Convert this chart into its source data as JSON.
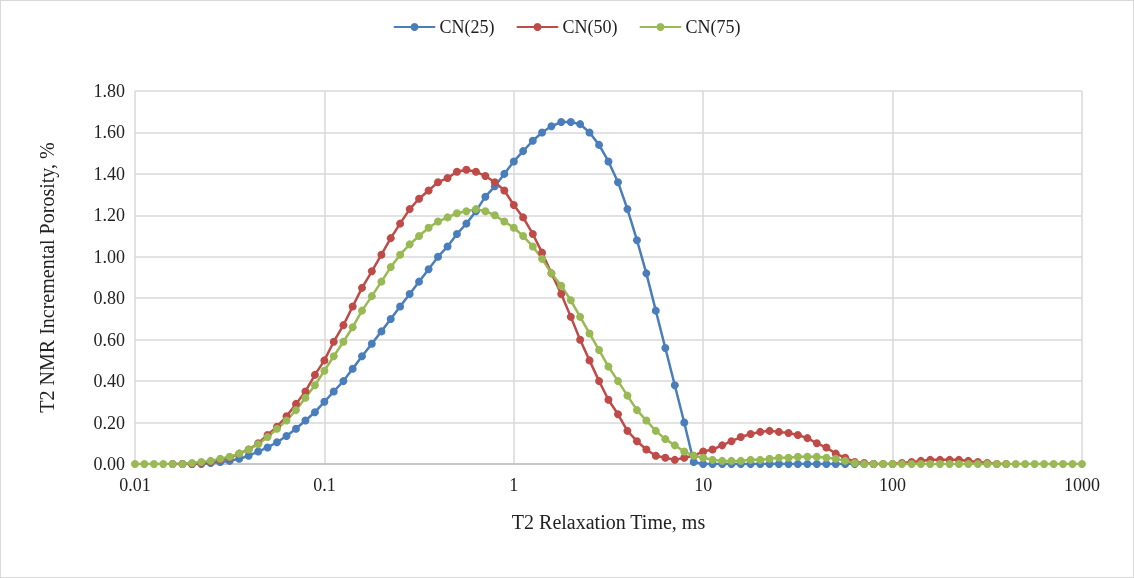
{
  "chart_data": {
    "type": "line",
    "xlabel": "T2 Relaxation Time, ms",
    "ylabel": "T2 NMR Incremental Porosity, %",
    "log": "x",
    "grid": true,
    "legend": "top",
    "marker": "circle",
    "line_style": "solid",
    "x": [
      0.01,
      0.0112,
      0.0126,
      0.0141,
      0.0158,
      0.0178,
      0.02,
      0.0224,
      0.0251,
      0.0282,
      0.0316,
      0.0355,
      0.0398,
      0.0447,
      0.0501,
      0.0562,
      0.0631,
      0.0708,
      0.0794,
      0.0891,
      0.1,
      0.112,
      0.126,
      0.141,
      0.158,
      0.178,
      0.2,
      0.224,
      0.251,
      0.282,
      0.316,
      0.355,
      0.398,
      0.447,
      0.501,
      0.562,
      0.631,
      0.708,
      0.794,
      0.891,
      1,
      1.12,
      1.26,
      1.41,
      1.58,
      1.78,
      2,
      2.24,
      2.51,
      2.82,
      3.16,
      3.55,
      3.98,
      4.47,
      5.01,
      5.62,
      6.31,
      7.08,
      7.94,
      8.91,
      10,
      11.2,
      12.6,
      14.1,
      15.8,
      17.8,
      20,
      22.4,
      25.1,
      28.2,
      31.6,
      35.5,
      39.8,
      44.7,
      50.1,
      56.2,
      63.1,
      70.8,
      79.4,
      89.1,
      100,
      112,
      126,
      141,
      158,
      178,
      200,
      224,
      251,
      282,
      316,
      355,
      398,
      447,
      501,
      562,
      631,
      708,
      794,
      891,
      1000
    ],
    "xlim": [
      0.01,
      1000
    ],
    "xticks": [
      0.01,
      0.1,
      1,
      10,
      100,
      1000
    ],
    "ylim": [
      0,
      1.8
    ],
    "yticks": [
      {
        "value": 0,
        "label": "0.00"
      },
      {
        "value": 0.2,
        "label": "0.20"
      },
      {
        "value": 0.4,
        "label": "0.40"
      },
      {
        "value": 0.6,
        "label": "0.60"
      },
      {
        "value": 0.8,
        "label": "0.80"
      },
      {
        "value": 1,
        "label": "1.00"
      },
      {
        "value": 1.2,
        "label": "1.20"
      },
      {
        "value": 1.4,
        "label": "1.40"
      },
      {
        "value": 1.6,
        "label": "1.60"
      },
      {
        "value": 1.8,
        "label": "1.80"
      }
    ],
    "series": [
      {
        "name": "CN(25)",
        "color": "#4a7ebb",
        "values": [
          null,
          null,
          null,
          null,
          null,
          0,
          0,
          0,
          0.005,
          0.01,
          0.015,
          0.025,
          0.04,
          0.06,
          0.08,
          0.105,
          0.135,
          0.17,
          0.21,
          0.25,
          0.3,
          0.35,
          0.4,
          0.46,
          0.52,
          0.58,
          0.64,
          0.7,
          0.76,
          0.82,
          0.88,
          0.94,
          1,
          1.05,
          1.11,
          1.16,
          1.22,
          1.29,
          1.34,
          1.4,
          1.46,
          1.51,
          1.56,
          1.6,
          1.63,
          1.65,
          1.65,
          1.64,
          1.6,
          1.54,
          1.46,
          1.36,
          1.23,
          1.08,
          0.92,
          0.74,
          0.56,
          0.38,
          0.2,
          0.01,
          0,
          0,
          0,
          0,
          0,
          0,
          0,
          0,
          0,
          0,
          0,
          0,
          0,
          0,
          0,
          0,
          0,
          0,
          0,
          null,
          null,
          null,
          null,
          null,
          null,
          null,
          null,
          null,
          null,
          null,
          null,
          null,
          null,
          null,
          null,
          null,
          null,
          null,
          null,
          null,
          null
        ]
      },
      {
        "name": "CN(50)",
        "color": "#be4b48",
        "values": [
          null,
          null,
          null,
          null,
          0,
          0,
          0,
          0.005,
          0.01,
          0.02,
          0.03,
          0.05,
          0.07,
          0.1,
          0.14,
          0.18,
          0.23,
          0.29,
          0.35,
          0.43,
          0.5,
          0.59,
          0.67,
          0.76,
          0.85,
          0.93,
          1.01,
          1.09,
          1.16,
          1.23,
          1.28,
          1.32,
          1.36,
          1.38,
          1.41,
          1.42,
          1.41,
          1.39,
          1.36,
          1.32,
          1.25,
          1.19,
          1.11,
          1.02,
          0.92,
          0.82,
          0.71,
          0.6,
          0.5,
          0.4,
          0.31,
          0.24,
          0.16,
          0.11,
          0.07,
          0.04,
          0.03,
          0.02,
          0.03,
          0.04,
          0.06,
          0.07,
          0.09,
          0.11,
          0.13,
          0.145,
          0.155,
          0.16,
          0.155,
          0.15,
          0.14,
          0.125,
          0.1,
          0.08,
          0.05,
          0.03,
          0.01,
          0.005,
          0,
          0,
          0,
          0.005,
          0.01,
          0.015,
          0.02,
          0.02,
          0.02,
          0.02,
          0.015,
          0.01,
          0.005,
          0,
          0,
          null,
          null,
          null,
          null,
          null,
          null,
          null,
          null
        ]
      },
      {
        "name": "CN(75)",
        "color": "#98b954",
        "values": [
          0,
          0,
          0,
          0,
          0,
          0,
          0.005,
          0.01,
          0.015,
          0.025,
          0.035,
          0.05,
          0.07,
          0.095,
          0.13,
          0.17,
          0.21,
          0.26,
          0.32,
          0.38,
          0.45,
          0.52,
          0.59,
          0.66,
          0.74,
          0.81,
          0.88,
          0.95,
          1.01,
          1.06,
          1.1,
          1.14,
          1.17,
          1.19,
          1.21,
          1.22,
          1.23,
          1.22,
          1.2,
          1.17,
          1.14,
          1.1,
          1.05,
          0.99,
          0.92,
          0.86,
          0.79,
          0.71,
          0.63,
          0.55,
          0.47,
          0.4,
          0.33,
          0.26,
          0.21,
          0.16,
          0.12,
          0.09,
          0.06,
          0.04,
          0.03,
          0.02,
          0.015,
          0.015,
          0.015,
          0.02,
          0.02,
          0.025,
          0.03,
          0.03,
          0.035,
          0.035,
          0.035,
          0.03,
          0.025,
          0.015,
          0.005,
          0,
          0,
          0,
          0,
          0,
          0,
          0,
          0,
          0,
          0,
          0,
          0,
          0,
          0,
          0,
          0,
          0,
          0,
          0,
          0,
          0,
          0,
          0,
          0
        ]
      }
    ]
  }
}
